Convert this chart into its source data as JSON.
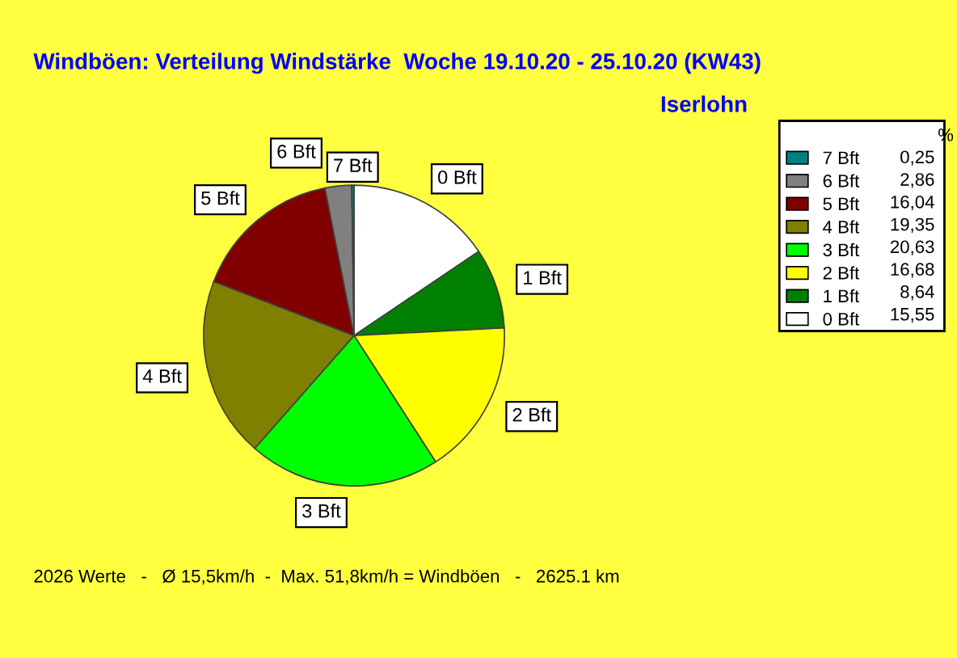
{
  "chart_data": {
    "type": "pie",
    "title": "Windböen: Verteilung Windstärke  Woche 19.10.20 - 25.10.20 (KW43)",
    "subtitle": "Iserlohn",
    "categories": [
      "0 Bft",
      "1 Bft",
      "2 Bft",
      "3 Bft",
      "4 Bft",
      "5 Bft",
      "6 Bft",
      "7 Bft"
    ],
    "values": [
      15.55,
      8.64,
      16.68,
      20.63,
      19.35,
      16.04,
      2.86,
      0.25
    ],
    "value_labels": [
      "15,55",
      "8,64",
      "16,68",
      "20,63",
      "19,35",
      "16,04",
      "2,86",
      "0,25"
    ],
    "colors": [
      "#ffffff",
      "#008000",
      "#ffff00",
      "#00ff00",
      "#808000",
      "#800000",
      "#808080",
      "#008080"
    ],
    "legend": "right",
    "legend_title": "%",
    "annotations": [
      "2026 Werte   -   Ø 15,5km/h  -  Max. 51,8km/h = Windböen   -   2625.1 km"
    ]
  }
}
